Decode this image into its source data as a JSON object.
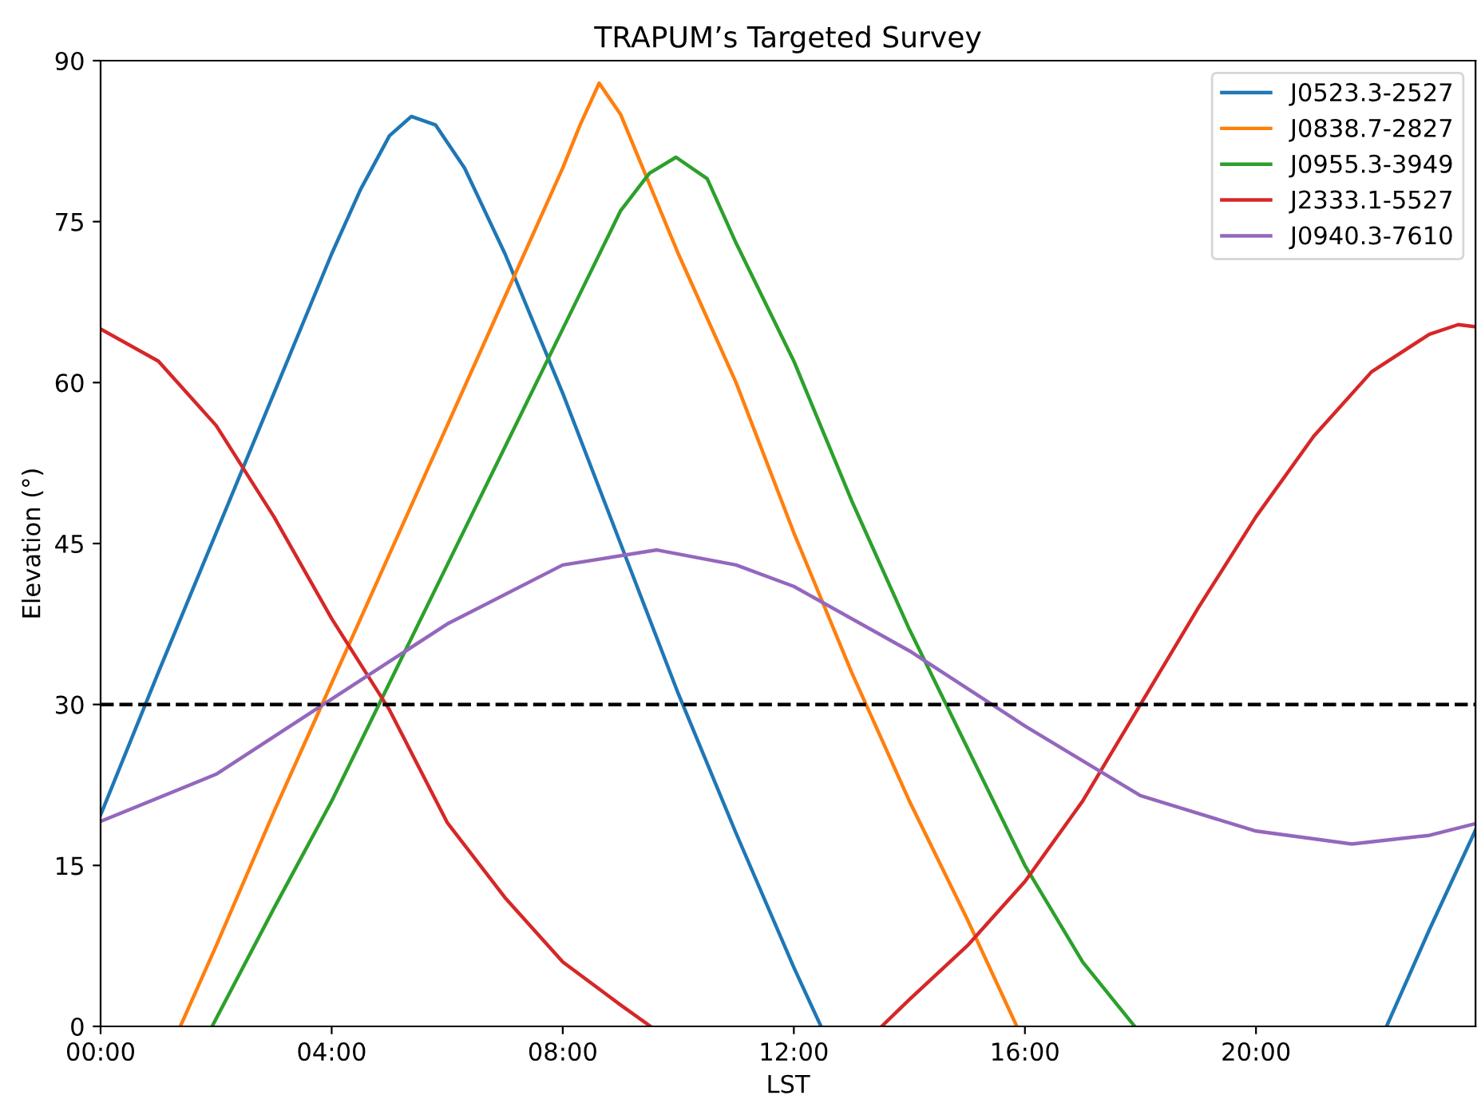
{
  "chart_data": {
    "type": "line",
    "title": "TRAPUM’s Targeted Survey",
    "xlabel": "LST",
    "ylabel": "Elevation (°)",
    "xlim": [
      0,
      23.8
    ],
    "ylim": [
      0,
      90
    ],
    "xticks": [
      {
        "value": 0,
        "label": "00:00"
      },
      {
        "value": 4,
        "label": "04:00"
      },
      {
        "value": 8,
        "label": "08:00"
      },
      {
        "value": 12,
        "label": "12:00"
      },
      {
        "value": 16,
        "label": "16:00"
      },
      {
        "value": 20,
        "label": "20:00"
      }
    ],
    "yticks": [
      0,
      15,
      30,
      45,
      60,
      75,
      90
    ],
    "grid": false,
    "legend": "top right",
    "marker": "none",
    "line_style": "solid",
    "ref_lines": [
      {
        "axis": "y",
        "value": 30,
        "color": "#000000",
        "line_style": "dashed"
      }
    ],
    "series": [
      {
        "name": "J0523.3-2527",
        "color": "#1f77b4",
        "x": [
          0,
          1,
          2,
          3,
          4,
          4.5,
          5,
          5.38,
          5.8,
          6.3,
          7,
          8,
          9,
          10,
          11,
          12,
          12.47,
          17,
          22.26,
          23,
          23.8
        ],
        "values": [
          19.7,
          33,
          46,
          59,
          72,
          78,
          83,
          84.8,
          84,
          80,
          72,
          59,
          45,
          31,
          18,
          5.5,
          0,
          null,
          0,
          9,
          18.3
        ]
      },
      {
        "name": "J0838.7-2827",
        "color": "#ff7f0e",
        "x": [
          1.38,
          2,
          3,
          4,
          5,
          6,
          7,
          8,
          8.3,
          8.63,
          9,
          10,
          11,
          12,
          13,
          14,
          15,
          15.86
        ],
        "values": [
          0,
          7.5,
          20,
          32,
          44,
          56,
          68,
          80,
          84,
          87.9,
          85,
          72,
          60,
          46,
          33,
          21,
          10,
          0
        ]
      },
      {
        "name": "J0955.3-3949",
        "color": "#2ca02c",
        "x": [
          1.93,
          3,
          4,
          5,
          6,
          7,
          8,
          9,
          9.5,
          9.96,
          10.5,
          11,
          12,
          13,
          14,
          15,
          16,
          17,
          17.9
        ],
        "values": [
          0,
          11,
          21,
          32,
          43,
          54,
          65,
          76,
          79.5,
          81,
          79,
          73,
          62,
          49,
          37,
          26,
          15,
          6,
          0
        ]
      },
      {
        "name": "J2333.1-5527",
        "color": "#d62728",
        "x": [
          0,
          1,
          2,
          3,
          4,
          5,
          6,
          7,
          8,
          9,
          9.52,
          11.5,
          13.52,
          14,
          15,
          16,
          17,
          18,
          19,
          20,
          21,
          22,
          23,
          23.5,
          23.8
        ],
        "values": [
          65,
          62,
          56,
          47.5,
          38,
          29.5,
          19,
          12,
          6,
          2,
          0,
          null,
          0,
          2.5,
          7.5,
          13.5,
          21,
          30,
          39,
          47.5,
          55,
          61,
          64.5,
          65.4,
          65.2
        ]
      },
      {
        "name": "J0940.3-7610",
        "color": "#9467bd",
        "x": [
          0,
          2,
          4,
          6,
          8,
          9.63,
          11,
          12,
          14,
          16,
          18,
          20,
          21.66,
          23,
          23.8
        ],
        "values": [
          19.1,
          23.5,
          30.5,
          37.5,
          43,
          44.4,
          43,
          41,
          35,
          28,
          21.5,
          18.2,
          17,
          17.8,
          18.9
        ]
      }
    ]
  }
}
